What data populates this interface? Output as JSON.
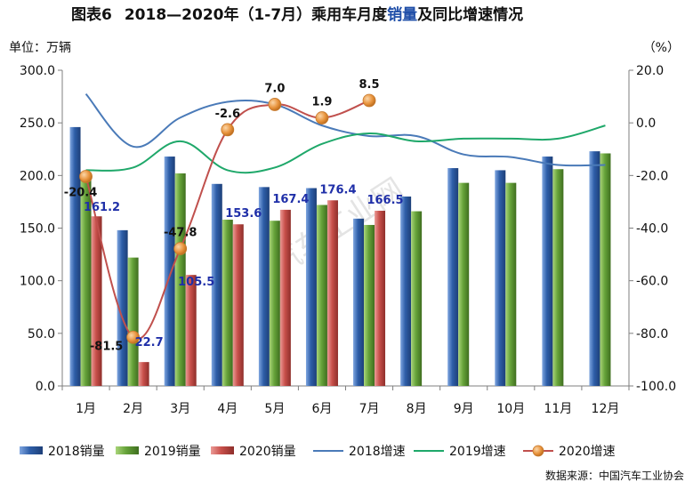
{
  "figure_label": "图表6",
  "title_prefix": "2018—2020年（1-7月）乘用车月度",
  "title_highlight": "销量",
  "title_suffix": "及同比增速情况",
  "left_unit": "单位：万辆",
  "right_unit": "（%）",
  "source": "数据来源：中国汽车工业协会",
  "watermark": "汽车工业网",
  "colors": {
    "bar2018": "#2e5ea8",
    "bar2019": "#66a33a",
    "bar2020": "#c8504b",
    "line2018": "#4a7ab8",
    "line2019": "#1fa86a",
    "line2020": "#c0504d",
    "marker2020": "#e8933c",
    "title_highlight": "#1f4ea8",
    "label_blue": "#1f2fa8"
  },
  "chart_data": {
    "type": "bar",
    "categories": [
      "1月",
      "2月",
      "3月",
      "4月",
      "5月",
      "6月",
      "7月",
      "8月",
      "9月",
      "10月",
      "11月",
      "12月"
    ],
    "ylim": [
      0,
      300
    ],
    "y_ticks": [
      "0.0",
      "50.0",
      "100.0",
      "150.0",
      "200.0",
      "250.0",
      "300.0"
    ],
    "y2lim": [
      -100,
      20
    ],
    "y2_ticks": [
      "-100.0",
      "-80.0",
      "-60.0",
      "-40.0",
      "-20.0",
      "0.0",
      "20.0"
    ],
    "bar_series": [
      {
        "name": "2018销量",
        "values": [
          246,
          148,
          218,
          192,
          189,
          188,
          159,
          180,
          207,
          205,
          218,
          223
        ]
      },
      {
        "name": "2019销量",
        "values": [
          203,
          122,
          202,
          158,
          157,
          172,
          153,
          166,
          193,
          193,
          206,
          221
        ]
      },
      {
        "name": "2020销量",
        "values": [
          161.2,
          22.7,
          105.5,
          153.6,
          167.4,
          176.4,
          166.5,
          null,
          null,
          null,
          null,
          null
        ]
      }
    ],
    "line_series": [
      {
        "name": "2018增速",
        "values": [
          11,
          -9,
          2,
          8,
          7,
          -1,
          -5,
          -5,
          -12,
          -13,
          -16,
          -16
        ]
      },
      {
        "name": "2019增速",
        "values": [
          -18,
          -17,
          -7,
          -18,
          -17,
          -8,
          -4,
          -7,
          -6,
          -6,
          -6,
          -1
        ]
      },
      {
        "name": "2020增速",
        "values": [
          -20.4,
          -81.5,
          -47.8,
          -2.6,
          7.0,
          1.9,
          8.5,
          null,
          null,
          null,
          null,
          null
        ]
      }
    ],
    "bar_labels_2020": [
      "161.2",
      "22.7",
      "105.5",
      "153.6",
      "167.4",
      "176.4",
      "166.5"
    ],
    "line_labels_2020": [
      "-20.4",
      "-81.5",
      "-47.8",
      "-2.6",
      "7.0",
      "1.9",
      "8.5"
    ],
    "legend": [
      "2018销量",
      "2019销量",
      "2020销量",
      "2018增速",
      "2019增速",
      "2020增速"
    ],
    "legend_position": "bottom",
    "grid": false
  }
}
